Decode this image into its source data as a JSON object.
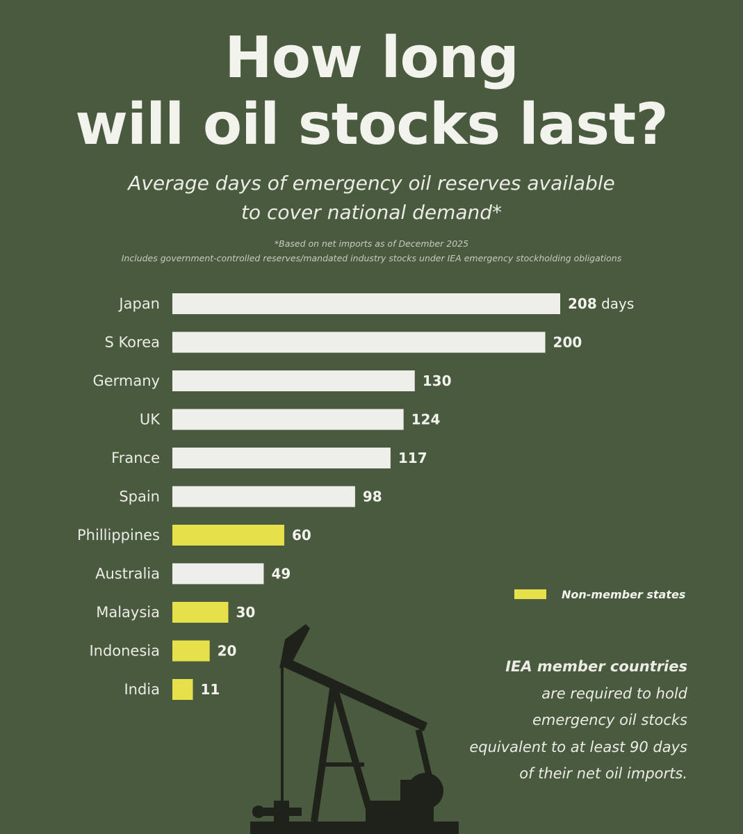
{
  "title_line1": "How long",
  "title_line2": "will oil stocks last?",
  "subtitle_line1": "Average days of emergency oil reserves available",
  "subtitle_line2": "to cover national demand*",
  "note_line1": "*Based on net imports as of December 2025",
  "note_line2": "Includes government-controlled reserves/mandated industry stocks under IEA emergency stockholding obligations",
  "legend": {
    "label": "Non-member states"
  },
  "info": {
    "bold": "IEA member countries",
    "text": "are required to hold emergency oil stocks equivalent to at least 90 days of their net oil imports."
  },
  "colors": {
    "background": "#4a5a3e",
    "member_bar": "#eeeeea",
    "non_member_bar": "#e6e04a"
  },
  "icons": {
    "illustration": "oil-pumpjack-icon"
  },
  "chart_data": {
    "type": "bar",
    "orientation": "horizontal",
    "title": "How long will oil stocks last?",
    "unit": "days",
    "categories": [
      "Japan",
      "S Korea",
      "Germany",
      "UK",
      "France",
      "Spain",
      "Phillippines",
      "Australia",
      "Malaysia",
      "Indonesia",
      "India"
    ],
    "values": [
      208,
      200,
      130,
      124,
      117,
      98,
      60,
      49,
      30,
      20,
      11
    ],
    "value_labels": [
      "208",
      "200",
      "130",
      "124",
      "117",
      "98",
      "60",
      "49",
      "30",
      "20",
      "11"
    ],
    "first_value_suffix": "days",
    "non_member": [
      false,
      false,
      false,
      false,
      false,
      false,
      true,
      false,
      true,
      true,
      true
    ],
    "xlim": [
      0,
      208
    ]
  }
}
